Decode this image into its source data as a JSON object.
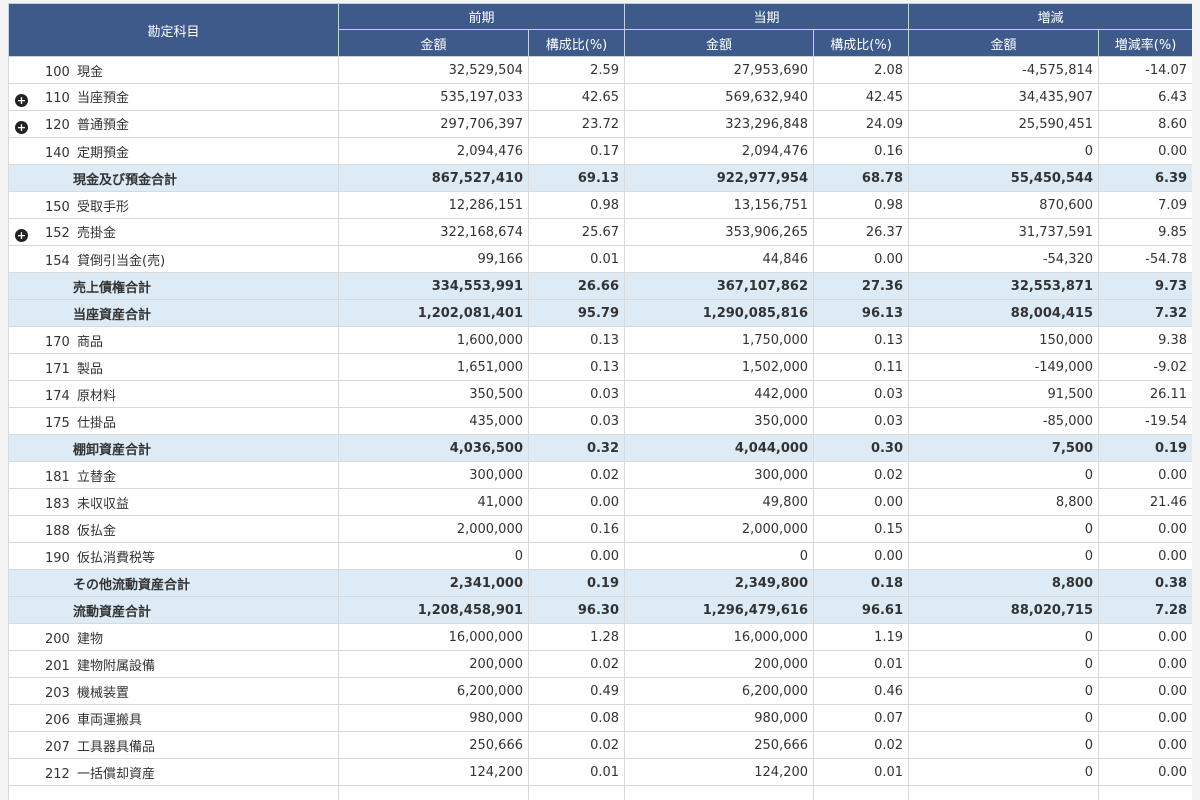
{
  "header": {
    "account_label": "勘定科目",
    "groups": [
      "前期",
      "当期",
      "増減"
    ],
    "sub": [
      "金額",
      "構成比(%)",
      "金額",
      "構成比(%)",
      "金額",
      "増減率(%)"
    ]
  },
  "expand_icon": "plus-circle-icon",
  "rows": [
    {
      "kind": "item",
      "code": "100",
      "name": "現金",
      "expand": false,
      "v": [
        "32,529,504",
        "2.59",
        "27,953,690",
        "2.08",
        "-4,575,814",
        "-14.07"
      ]
    },
    {
      "kind": "item",
      "code": "110",
      "name": "当座預金",
      "expand": true,
      "v": [
        "535,197,033",
        "42.65",
        "569,632,940",
        "42.45",
        "34,435,907",
        "6.43"
      ]
    },
    {
      "kind": "item",
      "code": "120",
      "name": "普通預金",
      "expand": true,
      "v": [
        "297,706,397",
        "23.72",
        "323,296,848",
        "24.09",
        "25,590,451",
        "8.60"
      ]
    },
    {
      "kind": "item",
      "code": "140",
      "name": "定期預金",
      "expand": false,
      "v": [
        "2,094,476",
        "0.17",
        "2,094,476",
        "0.16",
        "0",
        "0.00"
      ]
    },
    {
      "kind": "subtotal",
      "name": "現金及び預金合計",
      "v": [
        "867,527,410",
        "69.13",
        "922,977,954",
        "68.78",
        "55,450,544",
        "6.39"
      ]
    },
    {
      "kind": "item",
      "code": "150",
      "name": "受取手形",
      "expand": false,
      "v": [
        "12,286,151",
        "0.98",
        "13,156,751",
        "0.98",
        "870,600",
        "7.09"
      ]
    },
    {
      "kind": "item",
      "code": "152",
      "name": "売掛金",
      "expand": true,
      "v": [
        "322,168,674",
        "25.67",
        "353,906,265",
        "26.37",
        "31,737,591",
        "9.85"
      ]
    },
    {
      "kind": "item",
      "code": "154",
      "name": "貸倒引当金(売)",
      "expand": false,
      "v": [
        "99,166",
        "0.01",
        "44,846",
        "0.00",
        "-54,320",
        "-54.78"
      ]
    },
    {
      "kind": "subtotal",
      "name": "売上債権合計",
      "v": [
        "334,553,991",
        "26.66",
        "367,107,862",
        "27.36",
        "32,553,871",
        "9.73"
      ]
    },
    {
      "kind": "subtotal",
      "name": "当座資産合計",
      "v": [
        "1,202,081,401",
        "95.79",
        "1,290,085,816",
        "96.13",
        "88,004,415",
        "7.32"
      ]
    },
    {
      "kind": "item",
      "code": "170",
      "name": "商品",
      "expand": false,
      "v": [
        "1,600,000",
        "0.13",
        "1,750,000",
        "0.13",
        "150,000",
        "9.38"
      ]
    },
    {
      "kind": "item",
      "code": "171",
      "name": "製品",
      "expand": false,
      "v": [
        "1,651,000",
        "0.13",
        "1,502,000",
        "0.11",
        "-149,000",
        "-9.02"
      ]
    },
    {
      "kind": "item",
      "code": "174",
      "name": "原材料",
      "expand": false,
      "v": [
        "350,500",
        "0.03",
        "442,000",
        "0.03",
        "91,500",
        "26.11"
      ]
    },
    {
      "kind": "item",
      "code": "175",
      "name": "仕掛品",
      "expand": false,
      "v": [
        "435,000",
        "0.03",
        "350,000",
        "0.03",
        "-85,000",
        "-19.54"
      ]
    },
    {
      "kind": "subtotal",
      "name": "棚卸資産合計",
      "v": [
        "4,036,500",
        "0.32",
        "4,044,000",
        "0.30",
        "7,500",
        "0.19"
      ]
    },
    {
      "kind": "item",
      "code": "181",
      "name": "立替金",
      "expand": false,
      "v": [
        "300,000",
        "0.02",
        "300,000",
        "0.02",
        "0",
        "0.00"
      ]
    },
    {
      "kind": "item",
      "code": "183",
      "name": "未収収益",
      "expand": false,
      "v": [
        "41,000",
        "0.00",
        "49,800",
        "0.00",
        "8,800",
        "21.46"
      ]
    },
    {
      "kind": "item",
      "code": "188",
      "name": "仮払金",
      "expand": false,
      "v": [
        "2,000,000",
        "0.16",
        "2,000,000",
        "0.15",
        "0",
        "0.00"
      ]
    },
    {
      "kind": "item",
      "code": "190",
      "name": "仮払消費税等",
      "expand": false,
      "v": [
        "0",
        "0.00",
        "0",
        "0.00",
        "0",
        "0.00"
      ]
    },
    {
      "kind": "subtotal",
      "name": "その他流動資産合計",
      "v": [
        "2,341,000",
        "0.19",
        "2,349,800",
        "0.18",
        "8,800",
        "0.38"
      ]
    },
    {
      "kind": "subtotal",
      "name": "流動資産合計",
      "v": [
        "1,208,458,901",
        "96.30",
        "1,296,479,616",
        "96.61",
        "88,020,715",
        "7.28"
      ]
    },
    {
      "kind": "item",
      "code": "200",
      "name": "建物",
      "expand": false,
      "v": [
        "16,000,000",
        "1.28",
        "16,000,000",
        "1.19",
        "0",
        "0.00"
      ]
    },
    {
      "kind": "item",
      "code": "201",
      "name": "建物附属設備",
      "expand": false,
      "v": [
        "200,000",
        "0.02",
        "200,000",
        "0.01",
        "0",
        "0.00"
      ]
    },
    {
      "kind": "item",
      "code": "203",
      "name": "機械装置",
      "expand": false,
      "v": [
        "6,200,000",
        "0.49",
        "6,200,000",
        "0.46",
        "0",
        "0.00"
      ]
    },
    {
      "kind": "item",
      "code": "206",
      "name": "車両運搬具",
      "expand": false,
      "v": [
        "980,000",
        "0.08",
        "980,000",
        "0.07",
        "0",
        "0.00"
      ]
    },
    {
      "kind": "item",
      "code": "207",
      "name": "工具器具備品",
      "expand": false,
      "v": [
        "250,666",
        "0.02",
        "250,666",
        "0.02",
        "0",
        "0.00"
      ]
    },
    {
      "kind": "item",
      "code": "212",
      "name": "一括償却資産",
      "expand": false,
      "v": [
        "124,200",
        "0.01",
        "124,200",
        "0.01",
        "0",
        "0.00"
      ]
    }
  ]
}
